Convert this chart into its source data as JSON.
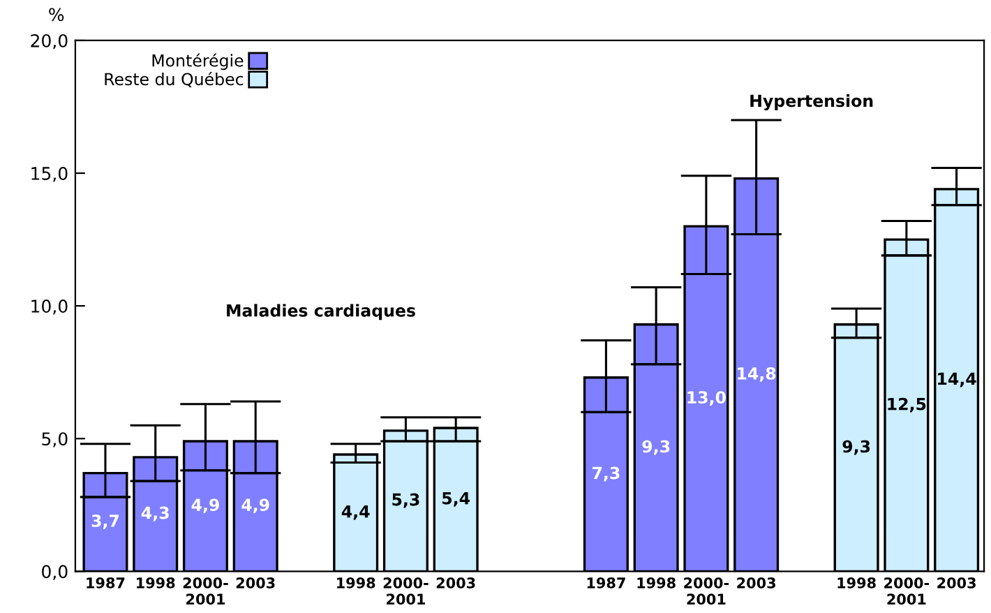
{
  "chart_data": {
    "type": "bar",
    "ylabel": "%",
    "categories": [
      "1987",
      "1998",
      "2000-\n2001",
      "2003",
      null,
      "1998",
      "2000-\n2001",
      "2003",
      null,
      null,
      "1987",
      "1998",
      "2000-\n2001",
      "2003",
      null,
      "1998",
      "2000-\n2001",
      "2003"
    ],
    "series": [
      {
        "name": "Montérégie",
        "color": "#7f7fff",
        "values": [
          3.7,
          4.3,
          4.9,
          4.9,
          null,
          null,
          null,
          null,
          null,
          null,
          7.3,
          9.3,
          13.0,
          14.8,
          null,
          null,
          null,
          null
        ],
        "value_labels": [
          "3,7",
          "4,3",
          "4,9",
          "4,9",
          null,
          null,
          null,
          null,
          null,
          null,
          "7,3",
          "9,3",
          "13,0",
          "14,8",
          null,
          null,
          null,
          null
        ],
        "errors": [
          [
            2.8,
            4.8
          ],
          [
            3.4,
            5.5
          ],
          [
            3.8,
            6.3
          ],
          [
            3.7,
            6.4
          ],
          null,
          null,
          null,
          null,
          null,
          null,
          [
            6.0,
            8.7
          ],
          [
            7.8,
            10.7
          ],
          [
            11.2,
            14.9
          ],
          [
            12.7,
            17.0
          ],
          null,
          null,
          null,
          null
        ]
      },
      {
        "name": "Reste du Québec",
        "color": "#cceeff",
        "values": [
          null,
          null,
          null,
          null,
          null,
          4.4,
          5.3,
          5.4,
          null,
          null,
          null,
          null,
          null,
          null,
          null,
          9.3,
          12.5,
          14.4
        ],
        "value_labels": [
          null,
          null,
          null,
          null,
          null,
          "4,4",
          "5,3",
          "5,4",
          null,
          null,
          null,
          null,
          null,
          null,
          null,
          "9,3",
          "12,5",
          "14,4"
        ],
        "errors": [
          null,
          null,
          null,
          null,
          null,
          [
            4.1,
            4.8
          ],
          [
            4.9,
            5.8
          ],
          [
            4.9,
            5.8
          ],
          null,
          null,
          null,
          null,
          null,
          null,
          null,
          [
            8.8,
            9.9
          ],
          [
            11.9,
            13.2
          ],
          [
            13.8,
            15.2
          ]
        ]
      }
    ],
    "annotations": [
      "Maladies cardiaques",
      "Hypertension"
    ],
    "ylim": [
      0,
      20
    ],
    "yticks": [
      {
        "value": 0,
        "label": "0,0"
      },
      {
        "value": 5,
        "label": "5,0"
      },
      {
        "value": 10,
        "label": "10,0"
      },
      {
        "value": 15,
        "label": "15,0"
      },
      {
        "value": 20,
        "label": "20,0"
      }
    ],
    "legend": "top left",
    "grid": false
  }
}
